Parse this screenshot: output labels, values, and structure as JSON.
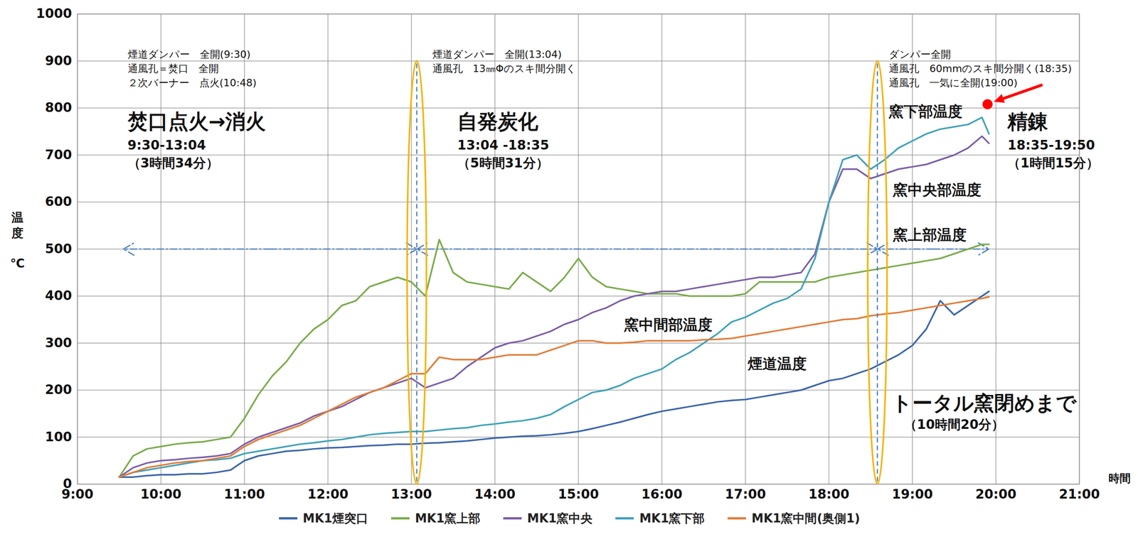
{
  "chart_data": {
    "type": "line",
    "xlabel": "時間",
    "ylabel": "温度",
    "yunit": "℃",
    "x": [
      9.5,
      9.6667,
      9.8333,
      10,
      10.1667,
      10.3333,
      10.5,
      10.6667,
      10.8333,
      11,
      11.1667,
      11.3333,
      11.5,
      11.6667,
      11.8333,
      12,
      12.1667,
      12.3333,
      12.5,
      12.6667,
      12.8333,
      13,
      13.1667,
      13.3333,
      13.5,
      13.6667,
      13.8333,
      14,
      14.1667,
      14.3333,
      14.5,
      14.6667,
      14.8333,
      15,
      15.1667,
      15.3333,
      15.5,
      15.6667,
      15.8333,
      16,
      16.1667,
      16.3333,
      16.5,
      16.6667,
      16.8333,
      17,
      17.1667,
      17.3333,
      17.5,
      17.6667,
      17.8333,
      18,
      18.1667,
      18.3333,
      18.5,
      18.6667,
      18.8333,
      19,
      19.1667,
      19.3333,
      19.5,
      19.6667,
      19.8333,
      19.9167
    ],
    "series": [
      {
        "name": "MK1煙突口",
        "color": "#3b66ab",
        "values": [
          15,
          15,
          18,
          20,
          20,
          22,
          22,
          25,
          30,
          50,
          60,
          65,
          70,
          72,
          75,
          77,
          78,
          80,
          82,
          83,
          85,
          85,
          87,
          88,
          90,
          92,
          95,
          98,
          100,
          102,
          103,
          105,
          108,
          112,
          118,
          125,
          132,
          140,
          148,
          155,
          160,
          165,
          170,
          175,
          178,
          180,
          185,
          190,
          195,
          200,
          210,
          220,
          225,
          235,
          245,
          260,
          275,
          295,
          330,
          390,
          360,
          380,
          400,
          410
        ]
      },
      {
        "name": "MK1窯上部",
        "color": "#7bab4a",
        "values": [
          15,
          60,
          75,
          80,
          85,
          88,
          90,
          95,
          100,
          140,
          190,
          230,
          260,
          300,
          330,
          350,
          380,
          390,
          420,
          430,
          440,
          430,
          400,
          520,
          450,
          430,
          425,
          420,
          415,
          450,
          430,
          410,
          440,
          480,
          440,
          420,
          415,
          410,
          405,
          405,
          405,
          400,
          400,
          400,
          400,
          405,
          430,
          430,
          430,
          430,
          430,
          440,
          445,
          450,
          455,
          460,
          465,
          470,
          475,
          480,
          490,
          500,
          510,
          510
        ]
      },
      {
        "name": "MK1窯中央",
        "color": "#7b5ea7",
        "values": [
          15,
          35,
          45,
          50,
          52,
          55,
          57,
          60,
          65,
          85,
          100,
          110,
          120,
          130,
          145,
          155,
          165,
          180,
          195,
          205,
          215,
          225,
          205,
          215,
          225,
          250,
          270,
          290,
          300,
          305,
          315,
          325,
          340,
          350,
          365,
          375,
          390,
          400,
          405,
          410,
          410,
          415,
          420,
          425,
          430,
          435,
          440,
          440,
          445,
          450,
          490,
          600,
          670,
          670,
          650,
          660,
          670,
          675,
          680,
          690,
          700,
          715,
          740,
          725
        ]
      },
      {
        "name": "MK1窯下部",
        "color": "#3fa2b8",
        "values": [
          15,
          25,
          30,
          35,
          40,
          45,
          50,
          52,
          55,
          65,
          70,
          75,
          80,
          85,
          88,
          92,
          95,
          100,
          105,
          108,
          110,
          112,
          112,
          115,
          118,
          120,
          125,
          128,
          132,
          135,
          140,
          148,
          165,
          180,
          195,
          200,
          210,
          225,
          235,
          245,
          265,
          280,
          300,
          320,
          345,
          355,
          370,
          385,
          395,
          415,
          480,
          600,
          690,
          700,
          670,
          690,
          715,
          730,
          745,
          755,
          760,
          765,
          780,
          745
        ]
      },
      {
        "name": "MK1窯中間(奥側1)",
        "color": "#e27c37",
        "values": [
          15,
          25,
          35,
          40,
          45,
          48,
          50,
          55,
          60,
          80,
          95,
          105,
          115,
          125,
          140,
          155,
          170,
          185,
          195,
          205,
          220,
          235,
          235,
          270,
          265,
          265,
          265,
          270,
          275,
          275,
          275,
          285,
          295,
          305,
          305,
          300,
          300,
          302,
          305,
          305,
          305,
          305,
          307,
          308,
          310,
          315,
          320,
          325,
          330,
          335,
          340,
          345,
          350,
          352,
          358,
          362,
          365,
          370,
          375,
          380,
          385,
          390,
          395,
          398
        ]
      }
    ],
    "xlim": [
      9,
      21
    ],
    "xticks": [
      {
        "value": 9,
        "label": "9:00"
      },
      {
        "value": 10,
        "label": "10:00"
      },
      {
        "value": 11,
        "label": "11:00"
      },
      {
        "value": 12,
        "label": "12:00"
      },
      {
        "value": 13,
        "label": "13:00"
      },
      {
        "value": 14,
        "label": "14:00"
      },
      {
        "value": 15,
        "label": "15:00"
      },
      {
        "value": 16,
        "label": "16:00"
      },
      {
        "value": 17,
        "label": "17:00"
      },
      {
        "value": 18,
        "label": "18:00"
      },
      {
        "value": 19,
        "label": "19:00"
      },
      {
        "value": 20,
        "label": "20:00"
      },
      {
        "value": 21,
        "label": "21:00"
      }
    ],
    "ylim": [
      0,
      1000
    ],
    "yticks": [
      0,
      100,
      200,
      300,
      400,
      500,
      600,
      700,
      800,
      900,
      1000
    ],
    "grid": true,
    "legend": "bottom",
    "notes": [
      {
        "text": "煙道ダンパー　全開(9:30)",
        "x": 9.6,
        "y": 914
      },
      {
        "text": "通風孔＝焚口　全開",
        "x": 9.6,
        "y": 883
      },
      {
        "text": "２次バーナー　点火(10:48)",
        "x": 9.6,
        "y": 853
      },
      {
        "text": "煙道ダンパー　全開(13:04)",
        "x": 13.25,
        "y": 914
      },
      {
        "text": "通風孔　13㎜Φのスキ間分開く",
        "x": 13.25,
        "y": 883
      },
      {
        "text": "ダンパー全開",
        "x": 18.72,
        "y": 914
      },
      {
        "text": "通風孔　60mmのスキ間分開く(18:35)",
        "x": 18.72,
        "y": 883
      },
      {
        "text": "通風孔　一気に全開(19:00)",
        "x": 18.72,
        "y": 853
      }
    ],
    "phase_titles": [
      {
        "text": "焚口点火→消火",
        "x": 9.6,
        "y": 770
      },
      {
        "text": "自発炭化",
        "x": 13.55,
        "y": 770
      },
      {
        "text": "精錬",
        "x": 20.14,
        "y": 770
      },
      {
        "text": "トータル窯閉めまで",
        "x": 18.75,
        "y": 171
      }
    ],
    "phase_details": [
      {
        "text": "9:30-13:04",
        "x": 9.6,
        "y": 720
      },
      {
        "text": "（3時間34分）",
        "x": 9.6,
        "y": 682
      },
      {
        "text": "13:04 -18:35",
        "x": 13.55,
        "y": 720
      },
      {
        "text": "（5時間31分）",
        "x": 13.55,
        "y": 682
      },
      {
        "text": "18:35-19:50",
        "x": 20.14,
        "y": 720
      },
      {
        "text": "（1時間15分）",
        "x": 20.14,
        "y": 682
      },
      {
        "text": "（10時間20分）",
        "x": 18.9,
        "y": 126
      }
    ],
    "series_labels": [
      {
        "text": "窯下部温度",
        "x": 18.72,
        "y": 792
      },
      {
        "text": "窯中央部温度",
        "x": 18.77,
        "y": 625
      },
      {
        "text": "窯上部温度",
        "x": 18.77,
        "y": 530
      },
      {
        "text": "窯中間部温度",
        "x": 15.55,
        "y": 338
      },
      {
        "text": "煙道温度",
        "x": 17.03,
        "y": 255
      }
    ],
    "vlines": [
      13.0667,
      18.5833
    ],
    "spans": [
      {
        "x1": 9.55,
        "x2": 13.0667,
        "y": 500
      },
      {
        "x1": 13.0667,
        "x2": 18.5833,
        "y": 500
      },
      {
        "x1": 18.5833,
        "x2": 19.9167,
        "y": 500
      }
    ],
    "highlight": {
      "x": 19.9,
      "y": 808,
      "color": "#ff0000"
    }
  }
}
